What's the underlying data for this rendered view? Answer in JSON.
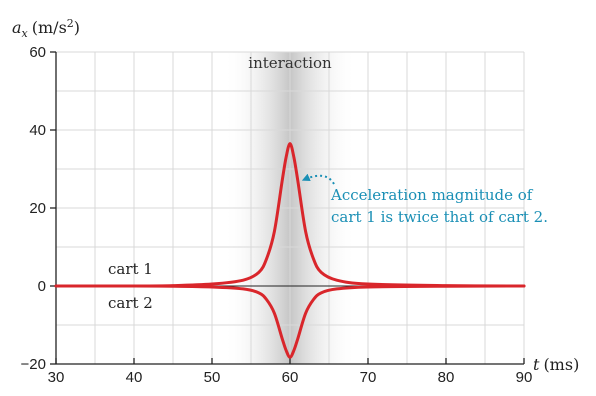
{
  "chart_data": {
    "type": "line",
    "y_axis_label": {
      "symbol": "a",
      "subscript": "x",
      "unit": "(m/s",
      "unit_sup": "2",
      "unit_close": ")"
    },
    "x_axis_label": {
      "symbol": "t",
      "unit": "(ms)"
    },
    "xlim": [
      30,
      90
    ],
    "ylim": [
      -20,
      60
    ],
    "x_ticks": [
      30,
      40,
      50,
      60,
      70,
      80,
      90
    ],
    "y_ticks": [
      -20,
      0,
      20,
      40,
      60
    ],
    "x_grid_step": 5,
    "y_grid_step": 10,
    "grid": true,
    "interaction_band": {
      "label": "interaction",
      "x_range": [
        55,
        65
      ]
    },
    "series": [
      {
        "name": "cart 1",
        "peak_t": 60,
        "x": [
          30,
          40,
          45,
          50,
          54,
          56,
          57,
          58,
          59,
          59.5,
          60,
          60.5,
          61,
          62,
          63,
          64,
          66,
          70,
          80,
          90
        ],
        "y": [
          0,
          0,
          0.1,
          0.5,
          1.5,
          3.5,
          7,
          14,
          27,
          33,
          36.5,
          33,
          27,
          14,
          7,
          3.5,
          1.5,
          0.5,
          0.1,
          0
        ]
      },
      {
        "name": "cart 2",
        "peak_t": 60,
        "x": [
          30,
          40,
          45,
          50,
          54,
          56,
          57,
          58,
          59,
          59.5,
          60,
          60.5,
          61,
          62,
          63,
          64,
          66,
          70,
          80,
          90
        ],
        "y": [
          0,
          0,
          -0.05,
          -0.25,
          -0.75,
          -1.75,
          -3.5,
          -7,
          -13.5,
          -16.5,
          -18.25,
          -16.5,
          -13.5,
          -7,
          -3.5,
          -1.75,
          -0.75,
          -0.25,
          -0.05,
          0
        ]
      }
    ],
    "annotation": {
      "lines": [
        "Acceleration magnitude of",
        "cart 1 is twice that of cart 2."
      ],
      "points_to": [
        61.5,
        28
      ]
    },
    "colors": {
      "series": "#d9262b",
      "annotation": "#1a8fb5",
      "grid": "#d9d9d9",
      "band": "#b3b3b3"
    }
  }
}
